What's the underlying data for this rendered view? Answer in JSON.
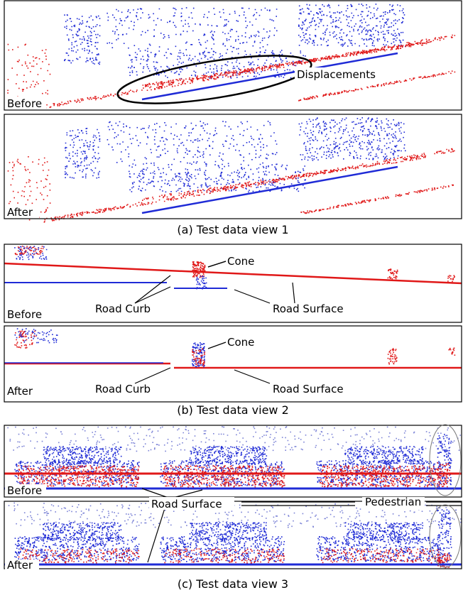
{
  "panels": [
    {
      "caption": "(a) Test data view 1",
      "views": [
        {
          "label": "Before",
          "annotations": [
            "Displacements"
          ]
        },
        {
          "label": "After"
        }
      ]
    },
    {
      "caption": "(b) Test data view 2",
      "views": [
        {
          "label": "Before",
          "annotations": [
            "Cone",
            "Road Curb",
            "Road Surface"
          ]
        },
        {
          "label": "After",
          "annotations": [
            "Cone",
            "Road Curb",
            "Road Surface"
          ]
        }
      ]
    },
    {
      "caption": "(c) Test data view 3",
      "views": [
        {
          "label": "Before"
        },
        {
          "label": "After"
        }
      ],
      "annotations": [
        "Road Surface",
        "Pedestrian"
      ]
    }
  ]
}
